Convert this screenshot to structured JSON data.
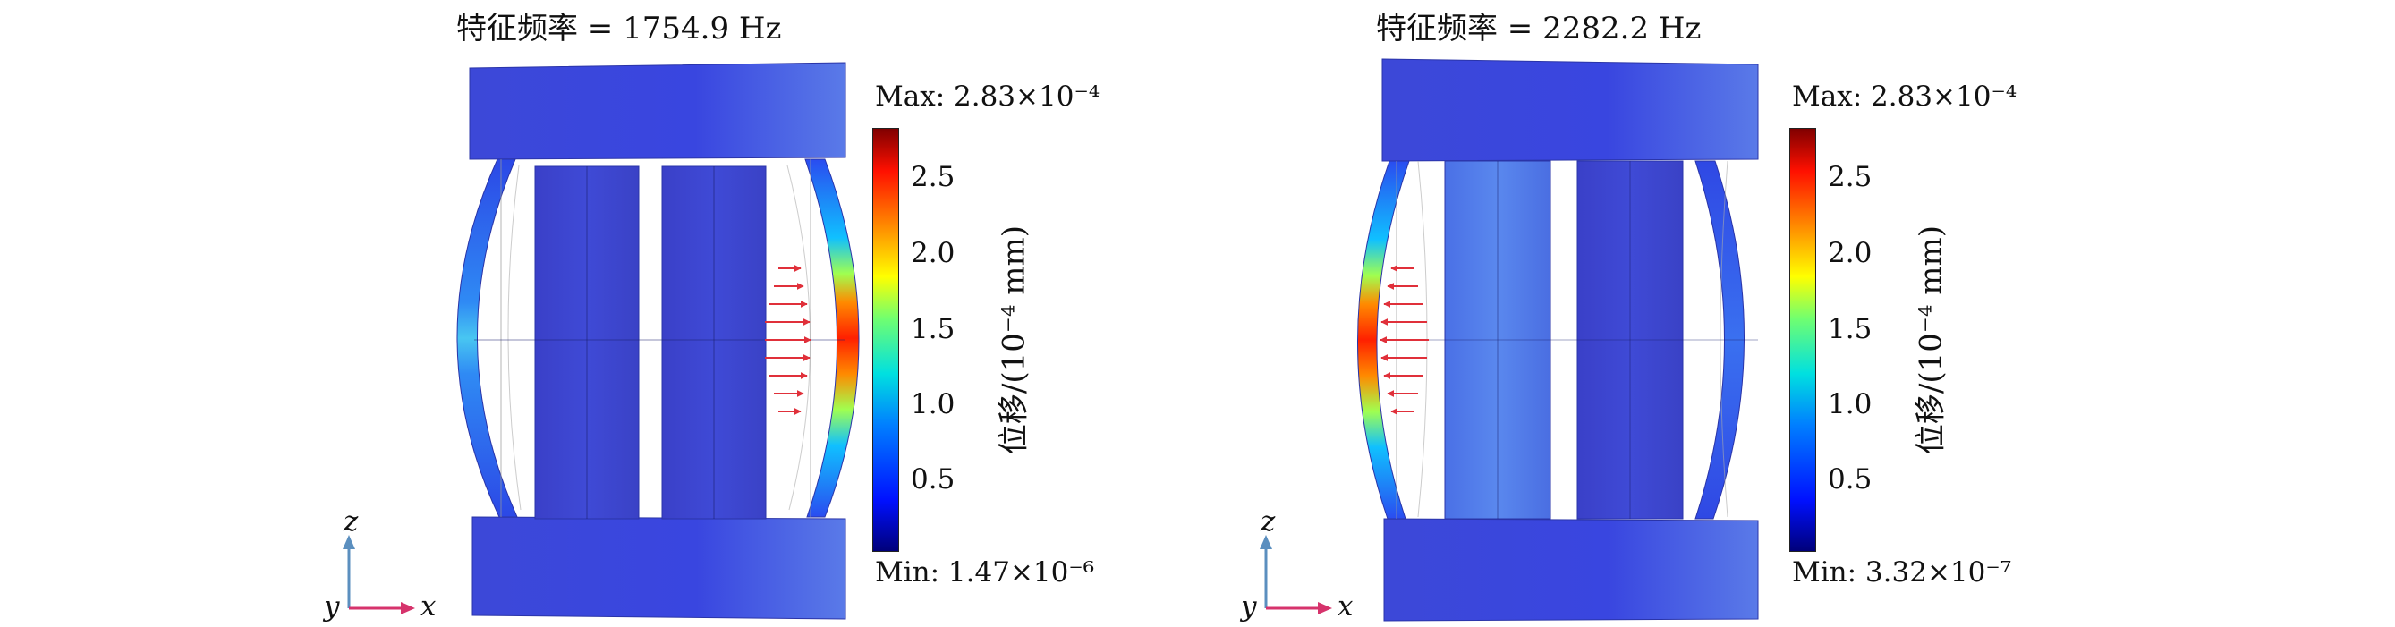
{
  "panels": [
    {
      "title": "特征频率 = 1754.9 Hz",
      "colorbar": {
        "max_label": "Max: 2.83×10⁻⁴",
        "min_label": "Min: 1.47×10⁻⁶",
        "ticks": [
          "0.5",
          "1.0",
          "1.5",
          "2.0",
          "2.5"
        ],
        "title": "位移/(10⁻⁴ mm)"
      },
      "axes": {
        "vertical": "z",
        "horizontal": "x",
        "depth": "y"
      }
    },
    {
      "title": "特征频率 = 2282.2 Hz",
      "colorbar": {
        "max_label": "Max: 2.83×10⁻⁴",
        "min_label": "Min: 3.32×10⁻⁷",
        "ticks": [
          "0.5",
          "1.0",
          "1.5",
          "2.0",
          "2.5"
        ],
        "title": "位移/(10⁻⁴ mm)"
      },
      "axes": {
        "vertical": "z",
        "horizontal": "x",
        "depth": "y"
      }
    }
  ],
  "colors": {
    "frame_blue": "#3344dd",
    "plate_blue": "#3a46d6",
    "colormap": [
      "#00007a",
      "#0010ff",
      "#0080ff",
      "#00e0e0",
      "#70ff70",
      "#ffff00",
      "#ff8000",
      "#ff1000",
      "#800000"
    ],
    "axis_arrow_vertical": "#5b8fbf",
    "axis_arrow_horizontal": "#d6336c"
  }
}
